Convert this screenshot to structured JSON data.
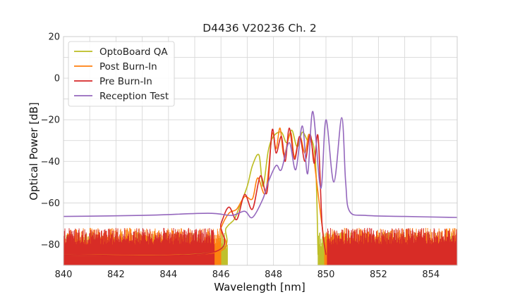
{
  "chart_data": {
    "type": "line",
    "title": "D4436 V20236 Ch. 2",
    "xlabel": "Wavelength [nm]",
    "ylabel": "Optical Power [dB]",
    "xlim": [
      840,
      855
    ],
    "ylim": [
      -90,
      20
    ],
    "xticks": [
      840,
      842,
      844,
      846,
      848,
      850,
      852,
      854
    ],
    "yticks": [
      -80,
      -60,
      -40,
      -20,
      0,
      20
    ],
    "xtick_labels": [
      "840",
      "842",
      "844",
      "846",
      "848",
      "850",
      "852",
      "854"
    ],
    "ytick_labels": [
      "−80",
      "−60",
      "−40",
      "−20",
      "0",
      "20"
    ],
    "grid": true,
    "legend_position": "top-left",
    "series": [
      {
        "name": "OptoBoard QA",
        "color": "#bcbd22",
        "x": [
          840,
          845.6,
          846.2,
          846.5,
          846.7,
          847.0,
          847.2,
          847.45,
          847.6,
          847.8,
          848.0,
          848.3,
          848.5,
          848.7,
          848.9,
          849.1,
          849.3,
          849.4,
          849.6,
          849.7
        ],
        "y": [
          -85,
          -84,
          -72,
          -68,
          -62,
          -52,
          -42,
          -37,
          -52,
          -35,
          -28,
          -26,
          -31,
          -25,
          -33,
          -26,
          -30,
          -28,
          -40,
          -85
        ]
      },
      {
        "name": "Post Burn-In",
        "color": "#ff7f0e",
        "x": [
          840,
          845.7,
          846.0,
          846.3,
          846.6,
          846.9,
          847.2,
          847.4,
          847.7,
          847.95,
          848.1,
          848.25,
          848.4,
          848.65,
          848.8,
          849.0,
          849.2,
          849.35,
          849.5,
          849.8,
          850.0
        ],
        "y": [
          -85,
          -84,
          -72,
          -65,
          -63,
          -57,
          -58,
          -48,
          -55,
          -27,
          -34,
          -24,
          -37,
          -26,
          -38,
          -28,
          -36,
          -27,
          -35,
          -66,
          -85
        ]
      },
      {
        "name": "Pre Burn-In",
        "color": "#d62728",
        "x": [
          840,
          845.6,
          846.0,
          846.3,
          846.6,
          846.9,
          847.2,
          847.5,
          847.75,
          847.95,
          848.1,
          848.3,
          848.45,
          848.6,
          848.8,
          849.0,
          849.2,
          849.4,
          849.55,
          849.7,
          849.85,
          850.0
        ],
        "y": [
          -85,
          -84,
          -70,
          -62,
          -68,
          -56,
          -63,
          -47,
          -55,
          -25,
          -36,
          -28,
          -40,
          -24,
          -39,
          -28,
          -40,
          -27,
          -41,
          -28,
          -70,
          -85
        ]
      },
      {
        "name": "Reception Test",
        "color": "#9467bd",
        "x": [
          840,
          843,
          845.5,
          846.4,
          846.9,
          847.2,
          847.6,
          847.8,
          848.1,
          848.3,
          848.6,
          848.85,
          849.1,
          849.3,
          849.5,
          849.8,
          850.0,
          850.3,
          850.6,
          850.75,
          850.9,
          851.5,
          853,
          855
        ],
        "y": [
          -66.5,
          -66,
          -65,
          -66,
          -64,
          -67,
          -58,
          -50,
          -42,
          -44,
          -31,
          -44,
          -23,
          -46,
          -16,
          -53,
          -20,
          -50,
          -19,
          -50,
          -64,
          -66,
          -66.5,
          -67
        ]
      }
    ]
  }
}
